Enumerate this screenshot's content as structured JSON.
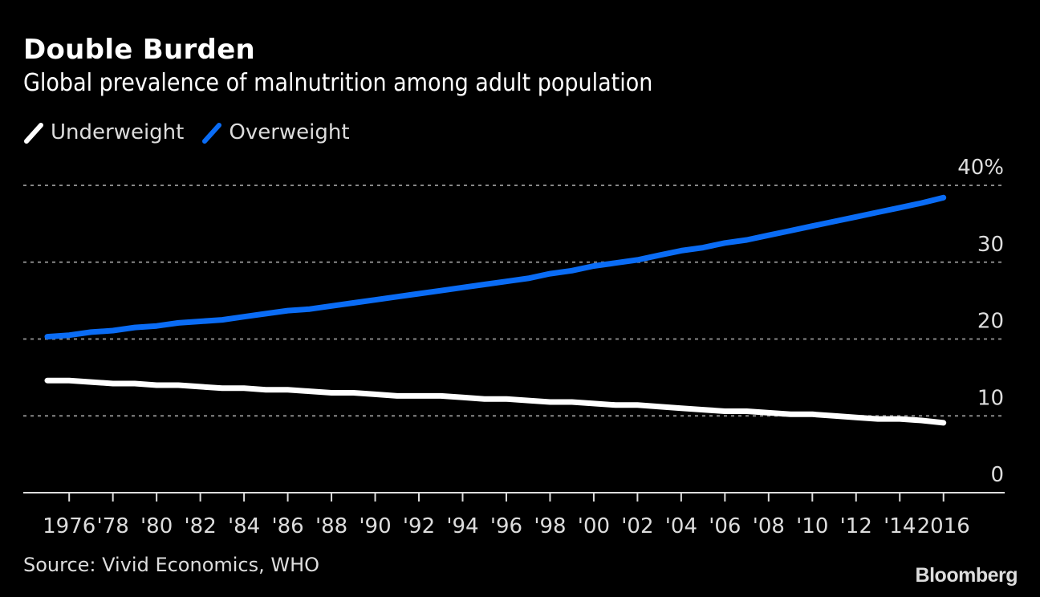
{
  "header": {
    "title": "Double Burden",
    "subtitle": "Global prevalence of malnutrition among adult population"
  },
  "legend": [
    {
      "label": "Underweight",
      "color": "#ffffff"
    },
    {
      "label": "Overweight",
      "color": "#0a6cf5"
    }
  ],
  "footer": {
    "source": "Source: Vivid Economics, WHO",
    "brand": "Bloomberg"
  },
  "colors": {
    "background": "#000000",
    "overweight": "#0a6cf5",
    "underweight": "#ffffff",
    "grid": "#888888",
    "axis": "#dddddd"
  },
  "chart_data": {
    "type": "line",
    "title": "Double Burden",
    "subtitle": "Global prevalence of malnutrition among adult population",
    "xlabel": "",
    "ylabel": "",
    "x": [
      1975,
      1976,
      1977,
      1978,
      1979,
      1980,
      1981,
      1982,
      1983,
      1984,
      1985,
      1986,
      1987,
      1988,
      1989,
      1990,
      1991,
      1992,
      1993,
      1994,
      1995,
      1996,
      1997,
      1998,
      1999,
      2000,
      2001,
      2002,
      2003,
      2004,
      2005,
      2006,
      2007,
      2008,
      2009,
      2010,
      2011,
      2012,
      2013,
      2014,
      2015,
      2016
    ],
    "series": [
      {
        "name": "Underweight",
        "color": "#ffffff",
        "values": [
          14.6,
          14.6,
          14.4,
          14.2,
          14.2,
          14.0,
          14.0,
          13.8,
          13.6,
          13.6,
          13.4,
          13.4,
          13.2,
          13.0,
          13.0,
          12.8,
          12.6,
          12.6,
          12.6,
          12.4,
          12.2,
          12.2,
          12.0,
          11.8,
          11.8,
          11.6,
          11.4,
          11.4,
          11.2,
          11.0,
          10.8,
          10.6,
          10.6,
          10.4,
          10.2,
          10.2,
          10.0,
          9.8,
          9.6,
          9.6,
          9.4,
          9.1
        ]
      },
      {
        "name": "Overweight",
        "color": "#0a6cf5",
        "values": [
          20.3,
          20.5,
          20.9,
          21.1,
          21.5,
          21.7,
          22.1,
          22.3,
          22.5,
          22.9,
          23.3,
          23.7,
          23.9,
          24.3,
          24.7,
          25.1,
          25.5,
          25.9,
          26.3,
          26.7,
          27.1,
          27.5,
          27.9,
          28.5,
          28.9,
          29.5,
          29.9,
          30.3,
          30.9,
          31.5,
          31.9,
          32.5,
          32.9,
          33.5,
          34.1,
          34.7,
          35.3,
          35.9,
          36.5,
          37.1,
          37.7,
          38.4
        ]
      }
    ],
    "xticks": [
      {
        "value": 1976,
        "label": "1976"
      },
      {
        "value": 1978,
        "label": "'78"
      },
      {
        "value": 1980,
        "label": "'80"
      },
      {
        "value": 1982,
        "label": "'82"
      },
      {
        "value": 1984,
        "label": "'84"
      },
      {
        "value": 1986,
        "label": "'86"
      },
      {
        "value": 1988,
        "label": "'88"
      },
      {
        "value": 1990,
        "label": "'90"
      },
      {
        "value": 1992,
        "label": "'92"
      },
      {
        "value": 1994,
        "label": "'94"
      },
      {
        "value": 1996,
        "label": "'96"
      },
      {
        "value": 1998,
        "label": "'98"
      },
      {
        "value": 2000,
        "label": "'00"
      },
      {
        "value": 2002,
        "label": "'02"
      },
      {
        "value": 2004,
        "label": "'04"
      },
      {
        "value": 2006,
        "label": "'06"
      },
      {
        "value": 2008,
        "label": "'08"
      },
      {
        "value": 2010,
        "label": "'10"
      },
      {
        "value": 2012,
        "label": "'12"
      },
      {
        "value": 2014,
        "label": "'14"
      },
      {
        "value": 2016,
        "label": "2016"
      }
    ],
    "yticks": [
      {
        "value": 0,
        "label": "0"
      },
      {
        "value": 10,
        "label": "10"
      },
      {
        "value": 20,
        "label": "20"
      },
      {
        "value": 30,
        "label": "30"
      },
      {
        "value": 40,
        "label": "40%"
      }
    ],
    "xlim": [
      1973.9,
      2018.8
    ],
    "ylim": [
      0,
      40
    ],
    "grid": true,
    "legend_position": "top-left",
    "y_axis_side": "right"
  }
}
